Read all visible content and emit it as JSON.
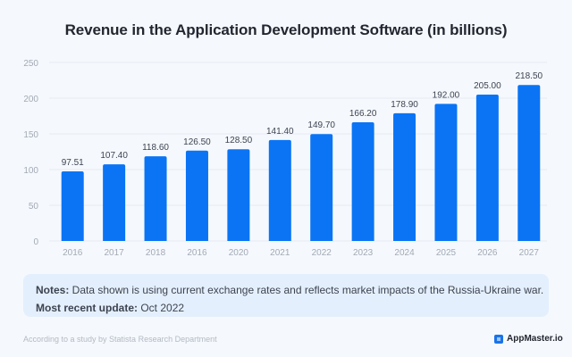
{
  "chart_data": {
    "type": "bar",
    "title": "Revenue in the Application Development Software (in billions)",
    "xlabel": "",
    "ylabel": "",
    "categories": [
      "2016",
      "2017",
      "2018",
      "2016",
      "2020",
      "2021",
      "2022",
      "2023",
      "2024",
      "2025",
      "2026",
      "2027"
    ],
    "values": [
      97.51,
      107.4,
      118.6,
      126.5,
      128.5,
      141.4,
      149.7,
      166.2,
      178.9,
      192.0,
      205.0,
      218.5
    ],
    "value_labels": [
      "97.51",
      "107.40",
      "118.60",
      "126.50",
      "128.50",
      "141.40",
      "149.70",
      "166.20",
      "178.90",
      "192.00",
      "205.00",
      "218.50"
    ],
    "ylim": [
      0,
      250
    ],
    "yticks": [
      0,
      50,
      100,
      150,
      200,
      250
    ],
    "grid": true,
    "bar_color": "#0a74f5"
  },
  "notes": {
    "notes_label": "Notes:",
    "notes_text": " Data shown is using current exchange rates and reflects market impacts of the Russia-Ukraine war.",
    "update_label": "Most recent update:",
    "update_text": " Oct 2022"
  },
  "footer": {
    "source": "According to a study by Statista Research Department",
    "brand": "AppMaster.io"
  }
}
